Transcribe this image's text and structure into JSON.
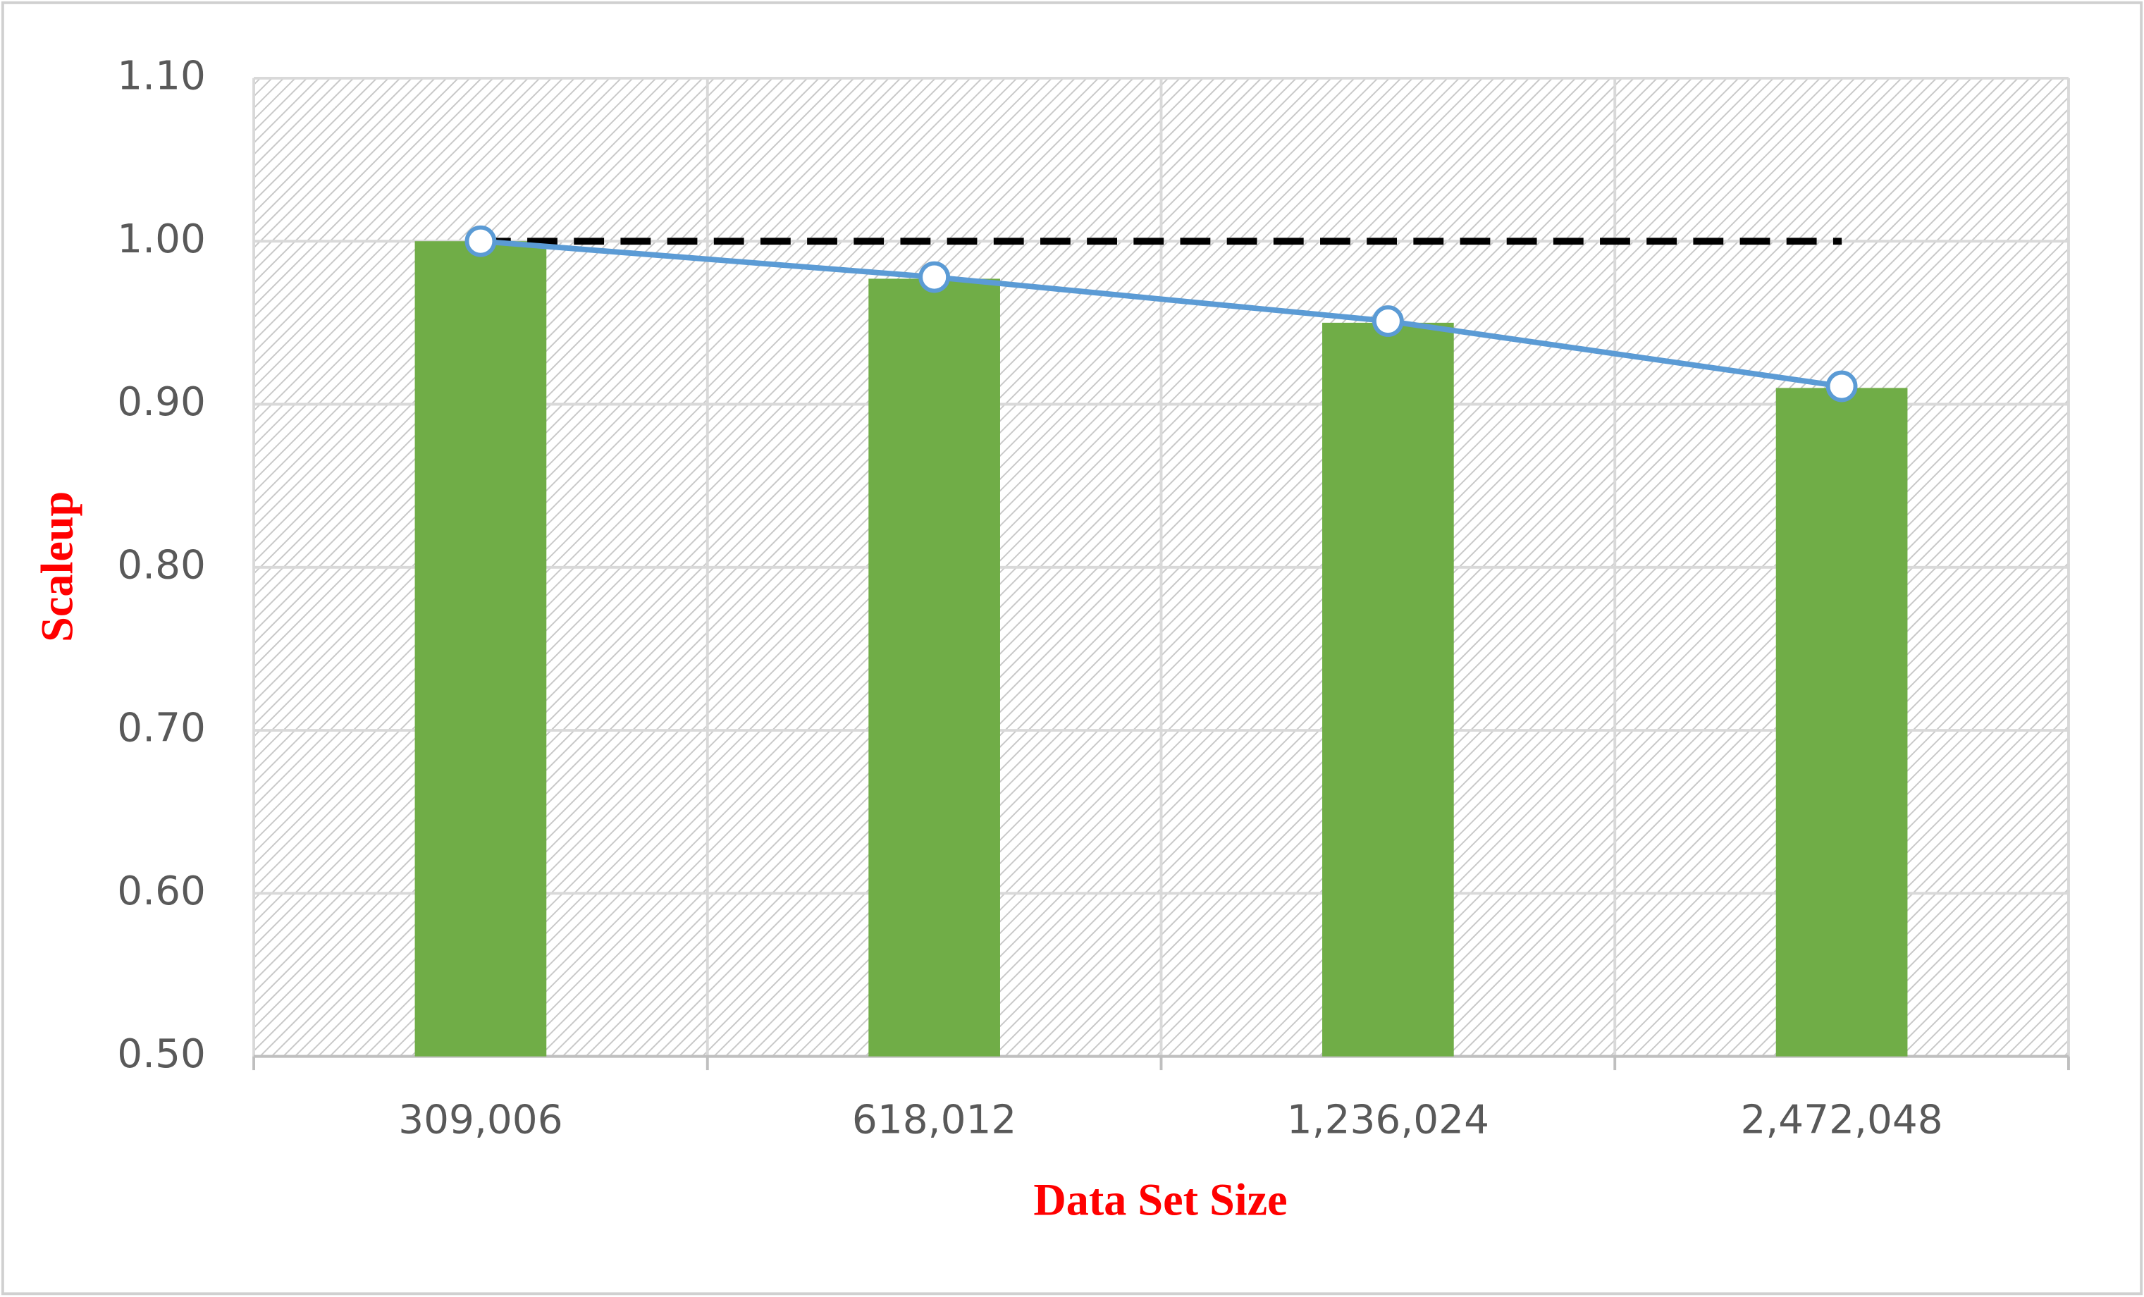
{
  "chart_data": {
    "type": "bar",
    "x_label": "Data Set Size",
    "y_label": "Scaleup",
    "categories": [
      "309,006",
      "618,012",
      "1,236,024",
      "2,472,048"
    ],
    "series": [
      {
        "type": "bar",
        "color": "#70ad47",
        "values": [
          1.0,
          0.977,
          0.95,
          0.91
        ]
      },
      {
        "type": "line",
        "color": "#5b9bd5",
        "values": [
          1.0,
          0.978,
          0.951,
          0.911
        ],
        "markers": true
      },
      {
        "type": "line",
        "color": "#000000",
        "values": [
          1.0,
          1.0,
          1.0,
          1.0
        ],
        "dashed": true
      }
    ],
    "ylim": [
      0.5,
      1.1
    ],
    "yticks": [
      {
        "value": 0.5,
        "label": "0.50"
      },
      {
        "value": 0.6,
        "label": "0.60"
      },
      {
        "value": 0.7,
        "label": "0.70"
      },
      {
        "value": 0.8,
        "label": "0.80"
      },
      {
        "value": 0.9,
        "label": "0.90"
      },
      {
        "value": 1.0,
        "label": "1.00"
      },
      {
        "value": 1.1,
        "label": "1.10"
      }
    ],
    "grid": true
  }
}
